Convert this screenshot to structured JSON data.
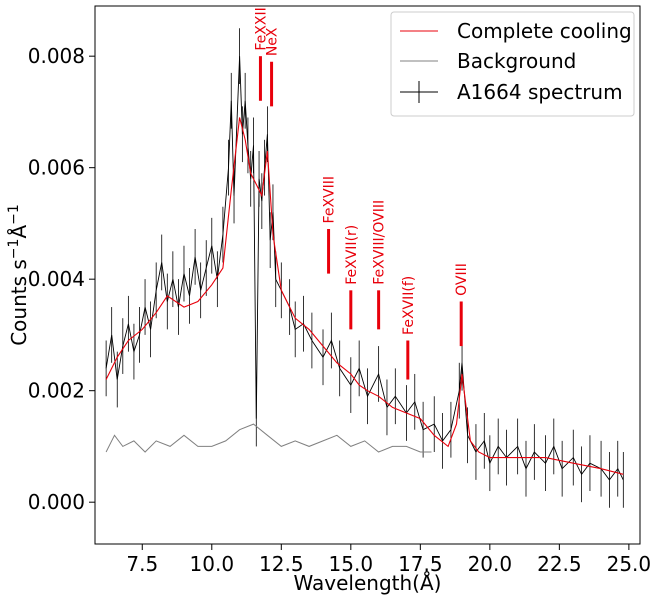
{
  "chart_data": {
    "type": "line",
    "title": "",
    "xlabel": "Wavelength(Å)",
    "ylabel_main": "Counts s",
    "ylabel_sup1": "−1",
    "ylabel_mid": "Å",
    "ylabel_sup2": "−1",
    "xlim": [
      5.8,
      25.4
    ],
    "ylim": [
      -0.00075,
      0.0089
    ],
    "x_ticks": [
      7.5,
      10.0,
      12.5,
      15.0,
      17.5,
      20.0,
      22.5,
      25.0
    ],
    "x_tick_labels": [
      "7.5",
      "10.0",
      "12.5",
      "15.0",
      "17.5",
      "20.0",
      "22.5",
      "25.0"
    ],
    "y_ticks": [
      0.0,
      0.002,
      0.004,
      0.006,
      0.008
    ],
    "y_tick_labels": [
      "0.000",
      "0.002",
      "0.004",
      "0.006",
      "0.008"
    ],
    "grid": false,
    "legend_position": "top-right",
    "colors": {
      "model": "#e8000b",
      "background": "#808080",
      "spectrum": "#000000",
      "annotation": "#e8000b"
    },
    "series": [
      {
        "name": "Complete cooling",
        "kind": "line",
        "x": [
          6.2,
          6.6,
          7.0,
          7.5,
          8.0,
          8.4,
          9.0,
          9.5,
          10.0,
          10.4,
          10.7,
          11.0,
          11.2,
          11.4,
          11.6,
          11.8,
          12.0,
          12.2,
          12.5,
          13.0,
          13.5,
          14.0,
          14.5,
          15.0,
          15.3,
          15.6,
          16.0,
          16.5,
          17.0,
          17.5,
          18.0,
          18.5,
          18.8,
          19.0,
          19.3,
          19.6,
          20.0,
          21.0,
          22.0,
          23.0,
          24.0,
          24.8
        ],
        "y": [
          0.0022,
          0.0026,
          0.0029,
          0.0031,
          0.0034,
          0.0037,
          0.0035,
          0.0036,
          0.0039,
          0.0042,
          0.0056,
          0.0069,
          0.0065,
          0.0059,
          0.0057,
          0.0055,
          0.0063,
          0.0048,
          0.0038,
          0.0033,
          0.0031,
          0.0028,
          0.0025,
          0.0023,
          0.0021,
          0.002,
          0.0019,
          0.0017,
          0.0016,
          0.0015,
          0.0012,
          0.001,
          0.0014,
          0.0023,
          0.0011,
          0.0009,
          0.0008,
          0.0008,
          0.0008,
          0.0007,
          0.0006,
          0.0005
        ]
      },
      {
        "name": "Background",
        "kind": "line",
        "x": [
          6.2,
          6.5,
          6.8,
          7.2,
          7.6,
          8.0,
          8.5,
          9.0,
          9.5,
          10.0,
          10.5,
          11.0,
          11.5,
          12.0,
          12.5,
          13.0,
          13.5,
          14.0,
          14.5,
          15.0,
          15.5,
          16.0,
          16.5,
          17.0,
          17.5,
          17.9
        ],
        "y": [
          0.0009,
          0.0012,
          0.001,
          0.0011,
          0.0009,
          0.0011,
          0.001,
          0.0012,
          0.001,
          0.001,
          0.0011,
          0.0013,
          0.0014,
          0.0012,
          0.001,
          0.0011,
          0.001,
          0.0011,
          0.0012,
          0.001,
          0.0011,
          0.0009,
          0.001,
          0.001,
          0.0009,
          0.0009
        ]
      },
      {
        "name": "A1664 spectrum",
        "kind": "line-errorbar",
        "x": [
          6.2,
          6.4,
          6.6,
          6.8,
          7.0,
          7.2,
          7.4,
          7.6,
          7.8,
          8.0,
          8.2,
          8.4,
          8.6,
          8.8,
          9.0,
          9.2,
          9.4,
          9.6,
          9.8,
          10.0,
          10.2,
          10.4,
          10.6,
          10.7,
          10.8,
          11.0,
          11.1,
          11.2,
          11.3,
          11.4,
          11.5,
          11.6,
          11.7,
          11.8,
          11.9,
          12.0,
          12.1,
          12.2,
          12.3,
          12.5,
          12.8,
          13.0,
          13.3,
          13.6,
          14.0,
          14.3,
          14.6,
          15.0,
          15.3,
          15.6,
          16.0,
          16.3,
          16.6,
          17.0,
          17.3,
          17.6,
          18.0,
          18.3,
          18.6,
          18.9,
          19.0,
          19.2,
          19.5,
          19.8,
          20.0,
          20.3,
          20.6,
          21.0,
          21.3,
          21.6,
          22.0,
          22.3,
          22.6,
          23.0,
          23.3,
          23.6,
          24.0,
          24.3,
          24.6,
          24.8
        ],
        "y": [
          0.0024,
          0.003,
          0.0022,
          0.0028,
          0.0032,
          0.0027,
          0.003,
          0.0035,
          0.0031,
          0.0038,
          0.0043,
          0.0036,
          0.004,
          0.0035,
          0.0041,
          0.0037,
          0.0044,
          0.0038,
          0.0042,
          0.0046,
          0.004,
          0.0048,
          0.006,
          0.0072,
          0.0055,
          0.008,
          0.0066,
          0.0072,
          0.0064,
          0.0058,
          0.0064,
          0.0015,
          0.0058,
          0.0054,
          0.006,
          0.0066,
          0.0047,
          0.0052,
          0.004,
          0.0038,
          0.0035,
          0.0031,
          0.0032,
          0.0029,
          0.0026,
          0.0029,
          0.0024,
          0.0021,
          0.0024,
          0.0019,
          0.0023,
          0.0017,
          0.0019,
          0.0016,
          0.0018,
          0.0013,
          0.0014,
          0.0011,
          0.0013,
          0.002,
          0.0025,
          0.0012,
          0.0009,
          0.0011,
          0.0007,
          0.001,
          0.0008,
          0.001,
          0.0006,
          0.0009,
          0.0007,
          0.001,
          0.0006,
          0.0008,
          0.0005,
          0.0007,
          0.0006,
          0.0004,
          0.0006,
          0.0004
        ],
        "error": 0.0005
      }
    ],
    "annotations": [
      {
        "label": "FeXXII",
        "x": 11.75,
        "y_line": [
          0.0072,
          0.008
        ],
        "label_y": 0.0081
      },
      {
        "label": "NeX",
        "x": 12.15,
        "y_line": [
          0.0071,
          0.0079
        ],
        "label_y": 0.008
      },
      {
        "label": "FeXVIII",
        "x": 14.2,
        "y_line": [
          0.0041,
          0.0049
        ],
        "label_y": 0.005
      },
      {
        "label": "FeXVII(r)",
        "x": 15.0,
        "y_line": [
          0.0031,
          0.0038
        ],
        "label_y": 0.0039
      },
      {
        "label": "FeXVIII/OVIII",
        "x": 16.0,
        "y_line": [
          0.0031,
          0.0038
        ],
        "label_y": 0.0039
      },
      {
        "label": "FeXVII(f)",
        "x": 17.05,
        "y_line": [
          0.0022,
          0.0029
        ],
        "label_y": 0.003
      },
      {
        "label": "OVIII",
        "x": 18.97,
        "y_line": [
          0.0028,
          0.0036
        ],
        "label_y": 0.0037
      }
    ]
  }
}
